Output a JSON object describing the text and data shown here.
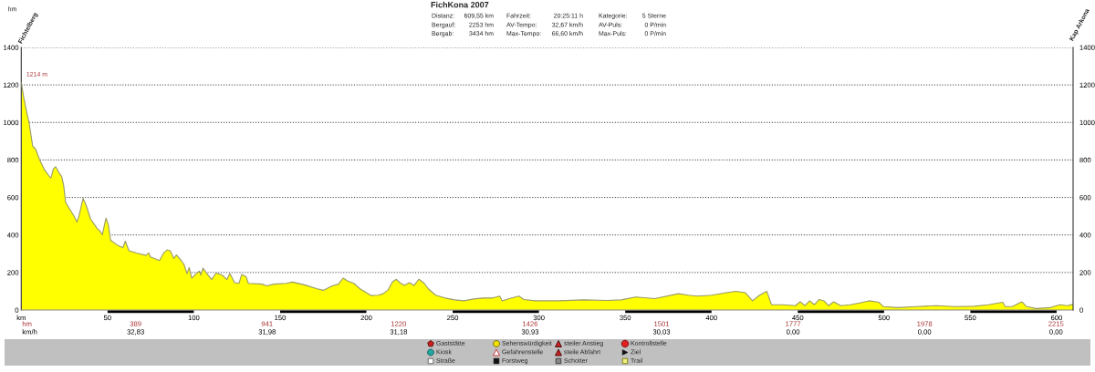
{
  "chart_data": {
    "type": "area",
    "title": "FichKona 2007",
    "x": [
      0,
      1.5,
      2.8,
      4.5,
      6.6,
      8.3,
      11,
      13.7,
      16.3,
      17.2,
      18.6,
      19.9,
      21.6,
      23.4,
      24.6,
      25.7,
      27.8,
      30.5,
      32.3,
      33.5,
      35.8,
      37.6,
      40.2,
      43.8,
      45.6,
      47,
      48.2,
      49.1,
      50.5,
      51.8,
      55.3,
      58.9,
      60.3,
      62.4,
      66.8,
      72.2,
      73.9,
      74.8,
      80.1,
      82.8,
      84.6,
      86.3,
      88.5,
      89.9,
      91.7,
      94.3,
      96.1,
      97.3,
      98.8,
      101.4,
      103.2,
      104.1,
      105.3,
      107.6,
      110.3,
      112.9,
      116.5,
      119.1,
      120.9,
      123.6,
      126.2,
      127.7,
      130.3,
      131.6,
      139.5,
      142.2,
      146.6,
      153.7,
      157.3,
      164.4,
      171.5,
      175,
      180.3,
      183.9,
      186.5,
      189.2,
      192.7,
      196.3,
      202.8,
      206.9,
      209.7,
      212.4,
      215.2,
      217.4,
      219.3,
      222.1,
      224.9,
      227.6,
      230.4,
      233.1,
      235.9,
      240.1,
      245.6,
      251.1,
      256.6,
      262.2,
      267.7,
      273.2,
      277.3,
      278.7,
      282.9,
      288.4,
      291.2,
      298.1,
      311.9,
      325.7,
      339.5,
      347.8,
      356.1,
      367.1,
      380.9,
      386.5,
      392,
      400.3,
      408.6,
      414.1,
      419.6,
      423.8,
      427.9,
      432,
      434.8,
      441.7,
      448.6,
      451.4,
      454.1,
      456.9,
      459.7,
      462.4,
      465.2,
      467.9,
      470.7,
      474.9,
      480.4,
      485.9,
      491.4,
      497,
      499.7,
      508,
      519.1,
      530.1,
      541.2,
      552.2,
      560.5,
      568.8,
      570.2,
      574.3,
      579.8,
      582.6,
      588.1,
      596.4,
      601.9,
      606.1,
      609.55
    ],
    "series": [
      {
        "color": "#ffff00",
        "values": [
          1214,
          1130,
          1070,
          1000,
          874,
          858,
          793,
          744,
          712,
          704,
          752,
          764,
          736,
          712,
          663,
          574,
          542,
          502,
          469,
          502,
          595,
          558,
          485,
          437,
          421,
          401,
          453,
          490,
          453,
          372,
          348,
          332,
          367,
          316,
          304,
          291,
          304,
          283,
          264,
          307,
          320,
          316,
          275,
          294,
          275,
          243,
          194,
          227,
          170,
          194,
          207,
          186,
          223,
          194,
          162,
          197,
          186,
          162,
          194,
          146,
          142,
          189,
          178,
          142,
          138,
          129,
          138,
          142,
          149,
          133,
          113,
          105,
          129,
          138,
          170,
          154,
          142,
          113,
          77,
          79,
          87,
          105,
          151,
          164,
          146,
          131,
          146,
          131,
          164,
          146,
          113,
          79,
          64,
          54,
          49,
          59,
          64,
          64,
          74,
          49,
          61,
          74,
          56,
          49,
          49,
          54,
          51,
          54,
          69,
          61,
          87,
          79,
          74,
          79,
          92,
          100,
          92,
          49,
          79,
          100,
          28,
          28,
          23,
          44,
          23,
          49,
          28,
          56,
          49,
          23,
          44,
          23,
          28,
          38,
          49,
          41,
          18,
          13,
          18,
          23,
          18,
          20,
          28,
          41,
          18,
          18,
          44,
          18,
          8,
          13,
          28,
          23,
          30
        ]
      }
    ],
    "xlim": [
      0,
      609.55
    ],
    "xticks": [
      {
        "value": 0,
        "label": "km"
      },
      50,
      100,
      150,
      200,
      250,
      300,
      350,
      400,
      450,
      500,
      550,
      600
    ],
    "ylim": [
      0,
      1400
    ],
    "yticks": [
      0,
      200,
      400,
      600,
      800,
      1000,
      1200,
      1400
    ],
    "y2lim": [
      0,
      1400
    ],
    "y2ticks": [
      0,
      200,
      400,
      600,
      800,
      1000,
      1200,
      1400
    ],
    "grid": "y",
    "annotations": [
      {
        "text": "1214 m",
        "x": 0,
        "y": 1214
      },
      "hm",
      "Fichtelberg",
      "Kap Arkona",
      "Distanz:",
      "609,55 km",
      "Fahrzeit:",
      "20:25:11 h",
      "Kategorie:",
      "5 Sterne",
      "Bergauf:",
      "2253 hm",
      "AV-Tempo:",
      "32,67 km/h",
      "AV-Puls:",
      "0 P/min",
      "Bergab:",
      "3434 hm",
      "Max-Tempo:",
      "66,60 km/h",
      "Max-Puls:",
      "0 P/min",
      "hm",
      "389",
      "941",
      "1220",
      "1426",
      "1501",
      "1777",
      "1978",
      "2215",
      "km/h",
      "32,83",
      "31,98",
      "31,18",
      "30,93",
      "30,03",
      "0,00",
      "0,00",
      "0,00",
      "Gaststätte",
      "Sehenswürdigkeit",
      "steiler Anstieg",
      "Kontrollstelle",
      "Kiosk",
      "Gefahrenstelle",
      "steile Abfahrt",
      "Ziel",
      "Straße",
      "Forstweg",
      "Schotter",
      "Trail"
    ]
  }
}
